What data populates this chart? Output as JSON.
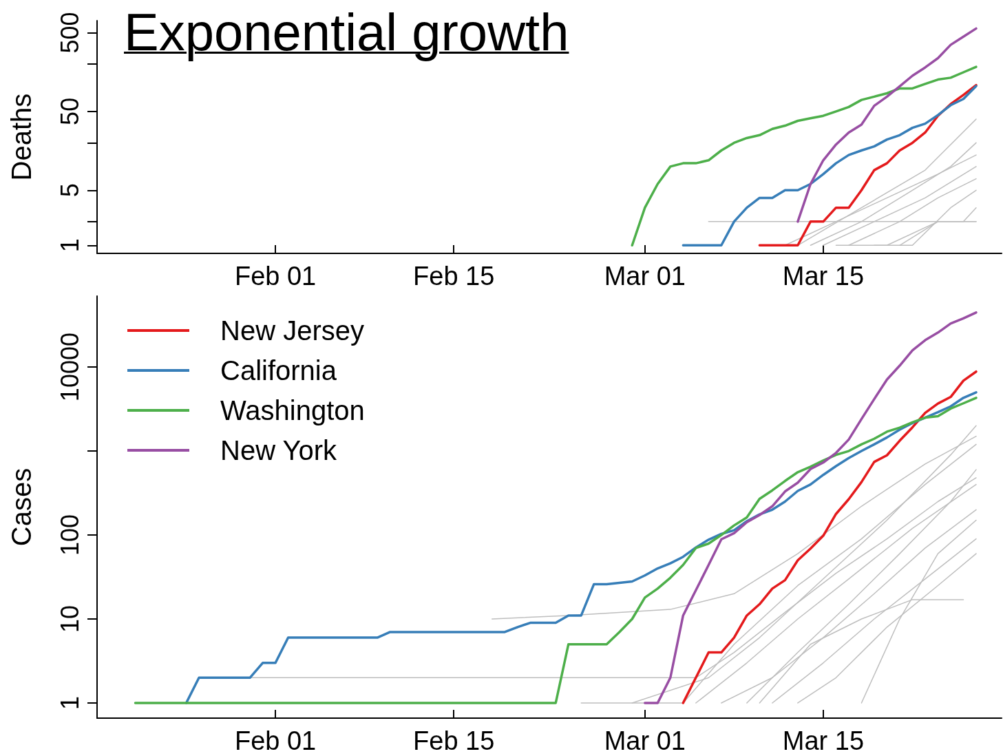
{
  "chart_data": [
    {
      "type": "line",
      "title": "Exponential growth",
      "ylabel": "Deaths",
      "log": true,
      "grid": false,
      "legend": false,
      "marker": "none",
      "line_style": "solid",
      "xlim": [
        "--01-18",
        "--03-29"
      ],
      "xticks": [
        {
          "value": "--02-01",
          "label": "Feb 01"
        },
        {
          "value": "--02-15",
          "label": "Feb 15"
        },
        {
          "value": "--03-01",
          "label": "Mar 01"
        },
        {
          "value": "--03-15",
          "label": "Mar 15"
        }
      ],
      "ylim": [
        0.79,
        710
      ],
      "yticks": [
        1,
        {
          "value": 2,
          "label": null
        },
        5,
        {
          "value": 20,
          "label": null
        },
        50,
        {
          "value": 200,
          "label": null
        },
        500
      ],
      "x": [
        "--02-29",
        "--03-01",
        "--03-02",
        "--03-03",
        "--03-04",
        "--03-05",
        "--03-06",
        "--03-07",
        "--03-08",
        "--03-09",
        "--03-10",
        "--03-11",
        "--03-12",
        "--03-13",
        "--03-14",
        "--03-15",
        "--03-16",
        "--03-17",
        "--03-18",
        "--03-19",
        "--03-20",
        "--03-21",
        "--03-22",
        "--03-23",
        "--03-24",
        "--03-25",
        "--03-26",
        "--03-27"
      ],
      "series": [
        {
          "color": "#bebebe",
          "x": [
            "--03-06",
            "--03-27"
          ],
          "values": [
            2,
            2
          ]
        },
        {
          "color": "#bebebe",
          "x": [
            "--03-12",
            "--03-16",
            "--03-20",
            "--03-24",
            "--03-27"
          ],
          "values": [
            1,
            2,
            4,
            8,
            14
          ]
        },
        {
          "color": "#bebebe",
          "x": [
            "--03-14",
            "--03-18",
            "--03-22",
            "--03-25",
            "--03-27"
          ],
          "values": [
            1,
            2,
            5,
            10,
            20
          ]
        },
        {
          "color": "#bebebe",
          "x": [
            "--03-15",
            "--03-19",
            "--03-23",
            "--03-27"
          ],
          "values": [
            1,
            2,
            4,
            10
          ]
        },
        {
          "color": "#bebebe",
          "x": [
            "--03-17",
            "--03-21",
            "--03-24",
            "--03-27"
          ],
          "values": [
            1,
            2,
            4,
            7
          ]
        },
        {
          "color": "#bebebe",
          "x": [
            "--03-19",
            "--03-22",
            "--03-25",
            "--03-27"
          ],
          "values": [
            1,
            1,
            3,
            5
          ]
        },
        {
          "color": "#bebebe",
          "x": [
            "--03-13",
            "--03-18",
            "--03-23",
            "--03-27"
          ],
          "values": [
            1,
            3,
            9,
            40
          ]
        },
        {
          "color": "#bebebe",
          "x": [
            "--03-21",
            "--03-24",
            "--03-26",
            "--03-27"
          ],
          "values": [
            1,
            2,
            2,
            3
          ]
        },
        {
          "color": "#bebebe",
          "x": [
            "--03-16",
            "--03-20",
            "--03-24",
            "--03-27"
          ],
          "values": [
            1,
            1,
            2,
            2
          ]
        },
        {
          "color": "#e41a1c",
          "values": [
            null,
            null,
            null,
            null,
            null,
            null,
            null,
            null,
            null,
            null,
            1,
            1,
            1,
            1,
            2,
            2,
            3,
            3,
            5,
            9,
            11,
            16,
            20,
            27,
            44,
            62,
            81,
            108
          ]
        },
        {
          "color": "#377eb8",
          "values": [
            null,
            null,
            null,
            null,
            1,
            1,
            1,
            1,
            2,
            3,
            4,
            4,
            5,
            5,
            6,
            8,
            11,
            14,
            16,
            18,
            22,
            25,
            31,
            35,
            45,
            60,
            72,
            105
          ]
        },
        {
          "color": "#4daf4a",
          "values": [
            1,
            3,
            6,
            10,
            11,
            11,
            12,
            16,
            20,
            23,
            25,
            30,
            33,
            38,
            41,
            44,
            50,
            57,
            70,
            77,
            85,
            98,
            98,
            112,
            127,
            134,
            157,
            184
          ]
        },
        {
          "color": "#984ea3",
          "values": [
            null,
            null,
            null,
            null,
            null,
            null,
            null,
            null,
            null,
            null,
            null,
            null,
            null,
            2,
            6,
            12,
            19,
            27,
            34,
            59,
            77,
            104,
            142,
            181,
            237,
            350,
            445,
            565
          ]
        }
      ]
    },
    {
      "type": "line",
      "ylabel": "Cases",
      "log": true,
      "grid": false,
      "legend": "top left",
      "marker": "none",
      "line_style": "solid",
      "xlim": [
        "--01-18",
        "--03-29"
      ],
      "xticks": [
        {
          "value": "--02-01",
          "label": "Feb 01"
        },
        {
          "value": "--02-15",
          "label": "Feb 15"
        },
        {
          "value": "--03-01",
          "label": "Mar 01"
        },
        {
          "value": "--03-15",
          "label": "Mar 15"
        }
      ],
      "ylim": [
        0.66,
        70000
      ],
      "yticks": [
        1,
        10,
        100,
        {
          "value": 1000,
          "label": null
        },
        10000
      ],
      "x": [
        "--01-21",
        "--01-22",
        "--01-23",
        "--01-24",
        "--01-25",
        "--01-26",
        "--01-27",
        "--01-28",
        "--01-29",
        "--01-30",
        "--01-31",
        "--02-01",
        "--02-02",
        "--02-03",
        "--02-04",
        "--02-05",
        "--02-06",
        "--02-07",
        "--02-08",
        "--02-09",
        "--02-10",
        "--02-11",
        "--02-12",
        "--02-13",
        "--02-14",
        "--02-15",
        "--02-16",
        "--02-17",
        "--02-18",
        "--02-19",
        "--02-20",
        "--02-21",
        "--02-22",
        "--02-23",
        "--02-24",
        "--02-25",
        "--02-26",
        "--02-27",
        "--02-28",
        "--02-29",
        "--03-01",
        "--03-02",
        "--03-03",
        "--03-04",
        "--03-05",
        "--03-06",
        "--03-07",
        "--03-08",
        "--03-09",
        "--03-10",
        "--03-11",
        "--03-12",
        "--03-13",
        "--03-14",
        "--03-15",
        "--03-16",
        "--03-17",
        "--03-18",
        "--03-19",
        "--03-20",
        "--03-21",
        "--03-22",
        "--03-23",
        "--03-24",
        "--03-25",
        "--03-26",
        "--03-27"
      ],
      "series": [
        {
          "color": "#bebebe",
          "x": [
            "--01-29",
            "--03-05",
            "--03-08",
            "--03-12",
            "--03-16",
            "--03-20",
            "--03-24",
            "--03-27"
          ],
          "values": [
            2,
            2,
            4,
            12,
            35,
            90,
            250,
            480
          ]
        },
        {
          "color": "#bebebe",
          "x": [
            "--02-18",
            "--02-24",
            "--03-03",
            "--03-08",
            "--03-13",
            "--03-18",
            "--03-23",
            "--03-27"
          ],
          "values": [
            10,
            11,
            13,
            20,
            60,
            220,
            700,
            1500
          ]
        },
        {
          "color": "#bebebe",
          "x": [
            "--02-25",
            "--03-04",
            "--03-08",
            "--03-13",
            "--03-18",
            "--03-23",
            "--03-27"
          ],
          "values": [
            1,
            1,
            5,
            25,
            90,
            400,
            1200
          ]
        },
        {
          "color": "#bebebe",
          "x": [
            "--03-10",
            "--03-14",
            "--03-18",
            "--03-22",
            "--03-26"
          ],
          "values": [
            1,
            5,
            10,
            17,
            17
          ]
        },
        {
          "color": "#bebebe",
          "x": [
            "--03-05",
            "--03-09",
            "--03-13",
            "--03-17",
            "--03-22",
            "--03-27"
          ],
          "values": [
            1,
            3,
            10,
            30,
            120,
            400
          ]
        },
        {
          "color": "#bebebe",
          "x": [
            "--03-07",
            "--03-11",
            "--03-15",
            "--03-19",
            "--03-23",
            "--03-27"
          ],
          "values": [
            1,
            2,
            6,
            20,
            70,
            200
          ]
        },
        {
          "color": "#bebebe",
          "x": [
            "--03-09",
            "--03-13",
            "--03-17",
            "--03-21",
            "--03-25",
            "--03-27"
          ],
          "values": [
            1,
            4,
            15,
            60,
            250,
            600
          ]
        },
        {
          "color": "#bebebe",
          "x": [
            "--03-11",
            "--03-15",
            "--03-19",
            "--03-23",
            "--03-27"
          ],
          "values": [
            1,
            3,
            10,
            30,
            90
          ]
        },
        {
          "color": "#bebebe",
          "x": [
            "--03-13",
            "--03-16",
            "--03-20",
            "--03-24",
            "--03-27"
          ],
          "values": [
            1,
            2,
            8,
            25,
            60
          ]
        },
        {
          "color": "#bebebe",
          "x": [
            "--03-18",
            "--03-21",
            "--03-24",
            "--03-27"
          ],
          "values": [
            1,
            10,
            60,
            150
          ]
        },
        {
          "color": "#bebebe",
          "x": [
            "--02-29",
            "--03-06",
            "--03-10",
            "--03-15",
            "--03-20",
            "--03-25",
            "--03-27"
          ],
          "values": [
            1,
            2,
            6,
            30,
            150,
            900,
            2000
          ]
        },
        {
          "name": "New Jersey",
          "color": "#e41a1c",
          "values": [
            null,
            null,
            null,
            null,
            null,
            null,
            null,
            null,
            null,
            null,
            null,
            null,
            null,
            null,
            null,
            null,
            null,
            null,
            null,
            null,
            null,
            null,
            null,
            null,
            null,
            null,
            null,
            null,
            null,
            null,
            null,
            null,
            null,
            null,
            null,
            null,
            null,
            null,
            null,
            null,
            null,
            null,
            null,
            1,
            2,
            4,
            4,
            6,
            11,
            15,
            23,
            29,
            50,
            69,
            98,
            178,
            267,
            427,
            742,
            890,
            1327,
            1914,
            2844,
            3675,
            4402,
            6876,
            8825
          ]
        },
        {
          "name": "California",
          "color": "#377eb8",
          "values": [
            null,
            null,
            null,
            null,
            1,
            2,
            2,
            2,
            2,
            2,
            3,
            3,
            6,
            6,
            6,
            6,
            6,
            6,
            6,
            6,
            7,
            7,
            7,
            7,
            7,
            7,
            7,
            7,
            7,
            7,
            8,
            9,
            9,
            9,
            11,
            11,
            26,
            26,
            27,
            28,
            33,
            40,
            46,
            55,
            71,
            88,
            103,
            114,
            146,
            176,
            200,
            250,
            335,
            400,
            520,
            660,
            825,
            1000,
            1200,
            1450,
            1800,
            2150,
            2500,
            2900,
            3400,
            4300,
            5000
          ]
        },
        {
          "name": "Washington",
          "color": "#4daf4a",
          "values": [
            1,
            1,
            1,
            1,
            1,
            1,
            1,
            1,
            1,
            1,
            1,
            1,
            1,
            1,
            1,
            1,
            1,
            1,
            1,
            1,
            1,
            1,
            1,
            1,
            1,
            1,
            1,
            1,
            1,
            1,
            1,
            1,
            1,
            1,
            5,
            5,
            5,
            5,
            7,
            10,
            18,
            23,
            31,
            44,
            70,
            79,
            100,
            130,
            162,
            270,
            340,
            440,
            560,
            650,
            770,
            900,
            1000,
            1200,
            1400,
            1700,
            1900,
            2200,
            2500,
            2600,
            3200,
            3700,
            4300
          ]
        },
        {
          "name": "New York",
          "color": "#984ea3",
          "values": [
            null,
            null,
            null,
            null,
            null,
            null,
            null,
            null,
            null,
            null,
            null,
            null,
            null,
            null,
            null,
            null,
            null,
            null,
            null,
            null,
            null,
            null,
            null,
            null,
            null,
            null,
            null,
            null,
            null,
            null,
            null,
            null,
            null,
            null,
            null,
            null,
            null,
            null,
            null,
            null,
            1,
            1,
            2,
            11,
            22,
            44,
            89,
            105,
            142,
            173,
            220,
            330,
            420,
            610,
            730,
            950,
            1370,
            2400,
            4150,
            7100,
            10400,
            15800,
            20900,
            25700,
            33000,
            38000,
            44600
          ]
        }
      ]
    }
  ]
}
